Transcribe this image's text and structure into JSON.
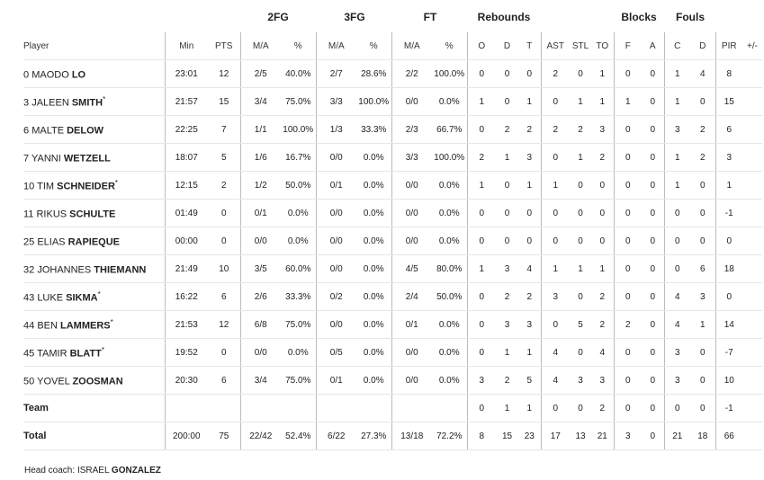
{
  "groups": {
    "fg2": "2FG",
    "fg3": "3FG",
    "ft": "FT",
    "reb": "Rebounds",
    "blk": "Blocks",
    "fouls": "Fouls"
  },
  "headers": [
    "Player",
    "Min",
    "PTS",
    "M/A",
    "%",
    "M/A",
    "%",
    "M/A",
    "%",
    "O",
    "D",
    "T",
    "AST",
    "STL",
    "TO",
    "F",
    "A",
    "C",
    "D",
    "PIR",
    "+/-"
  ],
  "players": [
    {
      "num": "0",
      "first": "MAODO",
      "last": "LO",
      "star": "",
      "stats": [
        "23:01",
        "12",
        "2/5",
        "40.0%",
        "2/7",
        "28.6%",
        "2/2",
        "100.0%",
        "0",
        "0",
        "0",
        "2",
        "0",
        "1",
        "0",
        "0",
        "1",
        "4",
        "8",
        ""
      ]
    },
    {
      "num": "3",
      "first": "JALEEN",
      "last": "SMITH",
      "star": "*",
      "stats": [
        "21:57",
        "15",
        "3/4",
        "75.0%",
        "3/3",
        "100.0%",
        "0/0",
        "0.0%",
        "1",
        "0",
        "1",
        "0",
        "1",
        "1",
        "1",
        "0",
        "1",
        "0",
        "15",
        ""
      ]
    },
    {
      "num": "6",
      "first": "MALTE",
      "last": "DELOW",
      "star": "",
      "stats": [
        "22:25",
        "7",
        "1/1",
        "100.0%",
        "1/3",
        "33.3%",
        "2/3",
        "66.7%",
        "0",
        "2",
        "2",
        "2",
        "2",
        "3",
        "0",
        "0",
        "3",
        "2",
        "6",
        ""
      ]
    },
    {
      "num": "7",
      "first": "YANNI",
      "last": "WETZELL",
      "star": "",
      "stats": [
        "18:07",
        "5",
        "1/6",
        "16.7%",
        "0/0",
        "0.0%",
        "3/3",
        "100.0%",
        "2",
        "1",
        "3",
        "0",
        "1",
        "2",
        "0",
        "0",
        "1",
        "2",
        "3",
        ""
      ]
    },
    {
      "num": "10",
      "first": "TIM",
      "last": "SCHNEIDER",
      "star": "*",
      "stats": [
        "12:15",
        "2",
        "1/2",
        "50.0%",
        "0/1",
        "0.0%",
        "0/0",
        "0.0%",
        "1",
        "0",
        "1",
        "1",
        "0",
        "0",
        "0",
        "0",
        "1",
        "0",
        "1",
        ""
      ]
    },
    {
      "num": "11",
      "first": "RIKUS",
      "last": "SCHULTE",
      "star": "",
      "stats": [
        "01:49",
        "0",
        "0/1",
        "0.0%",
        "0/0",
        "0.0%",
        "0/0",
        "0.0%",
        "0",
        "0",
        "0",
        "0",
        "0",
        "0",
        "0",
        "0",
        "0",
        "0",
        "-1",
        ""
      ]
    },
    {
      "num": "25",
      "first": "ELIAS",
      "last": "RAPIEQUE",
      "star": "",
      "stats": [
        "00:00",
        "0",
        "0/0",
        "0.0%",
        "0/0",
        "0.0%",
        "0/0",
        "0.0%",
        "0",
        "0",
        "0",
        "0",
        "0",
        "0",
        "0",
        "0",
        "0",
        "0",
        "0",
        ""
      ]
    },
    {
      "num": "32",
      "first": "JOHANNES",
      "last": "THIEMANN",
      "star": "",
      "stats": [
        "21:49",
        "10",
        "3/5",
        "60.0%",
        "0/0",
        "0.0%",
        "4/5",
        "80.0%",
        "1",
        "3",
        "4",
        "1",
        "1",
        "1",
        "0",
        "0",
        "0",
        "6",
        "18",
        ""
      ]
    },
    {
      "num": "43",
      "first": "LUKE",
      "last": "SIKMA",
      "star": "*",
      "stats": [
        "16:22",
        "6",
        "2/6",
        "33.3%",
        "0/2",
        "0.0%",
        "2/4",
        "50.0%",
        "0",
        "2",
        "2",
        "3",
        "0",
        "2",
        "0",
        "0",
        "4",
        "3",
        "0",
        ""
      ]
    },
    {
      "num": "44",
      "first": "BEN",
      "last": "LAMMERS",
      "star": "*",
      "stats": [
        "21:53",
        "12",
        "6/8",
        "75.0%",
        "0/0",
        "0.0%",
        "0/1",
        "0.0%",
        "0",
        "3",
        "3",
        "0",
        "5",
        "2",
        "2",
        "0",
        "4",
        "1",
        "14",
        ""
      ]
    },
    {
      "num": "45",
      "first": "TAMIR",
      "last": "BLATT",
      "star": "*",
      "stats": [
        "19:52",
        "0",
        "0/0",
        "0.0%",
        "0/5",
        "0.0%",
        "0/0",
        "0.0%",
        "0",
        "1",
        "1",
        "4",
        "0",
        "4",
        "0",
        "0",
        "3",
        "0",
        "-7",
        ""
      ]
    },
    {
      "num": "50",
      "first": "YOVEL",
      "last": "ZOOSMAN",
      "star": "",
      "stats": [
        "20:30",
        "6",
        "3/4",
        "75.0%",
        "0/1",
        "0.0%",
        "0/0",
        "0.0%",
        "3",
        "2",
        "5",
        "4",
        "3",
        "3",
        "0",
        "0",
        "3",
        "0",
        "10",
        ""
      ]
    }
  ],
  "team": {
    "label": "Team",
    "stats": [
      "",
      "",
      "",
      "",
      "",
      "",
      "",
      "",
      "0",
      "1",
      "1",
      "0",
      "0",
      "2",
      "0",
      "0",
      "0",
      "0",
      "-1",
      ""
    ]
  },
  "total": {
    "label": "Total",
    "stats": [
      "200:00",
      "75",
      "22/42",
      "52.4%",
      "6/22",
      "27.3%",
      "13/18",
      "72.2%",
      "8",
      "15",
      "23",
      "17",
      "13",
      "21",
      "3",
      "0",
      "21",
      "18",
      "66",
      ""
    ]
  },
  "coach": {
    "label": "Head coach:",
    "first": "ISRAEL",
    "last": "GONZALEZ"
  }
}
